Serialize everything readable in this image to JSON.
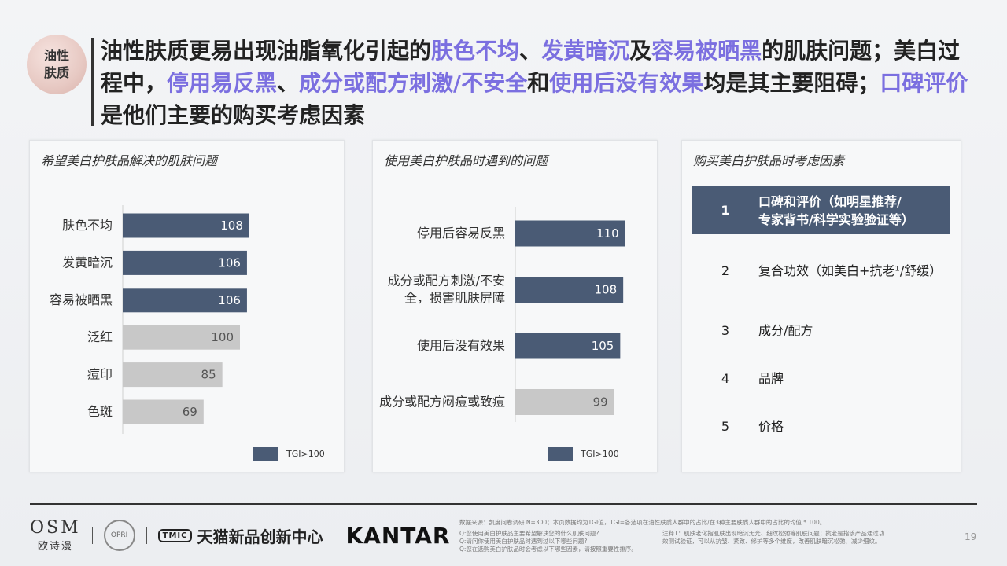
{
  "badge": "油性肤质",
  "title": {
    "segments": [
      {
        "text": "油性肤质更易出现油脂氧化引起的",
        "hl": false
      },
      {
        "text": "肤色不均",
        "hl": true
      },
      {
        "text": "、",
        "hl": false
      },
      {
        "text": "发黄暗沉",
        "hl": true
      },
      {
        "text": "及",
        "hl": false
      },
      {
        "text": "容易被晒黑",
        "hl": true
      },
      {
        "text": "的肌肤问题；美白过程中，",
        "hl": false
      },
      {
        "text": "停用易反黑",
        "hl": true
      },
      {
        "text": "、",
        "hl": false
      },
      {
        "text": "成分或配方刺激/不安全",
        "hl": true
      },
      {
        "text": "和",
        "hl": false
      },
      {
        "text": "使用后没有效果",
        "hl": true
      },
      {
        "text": "均是其主要阻碍；",
        "hl": false
      },
      {
        "text": "口碑评价",
        "hl": true
      },
      {
        "text": "是他们主要的购买考虑因素",
        "hl": false
      }
    ]
  },
  "panels": {
    "p1_title": "希望美白护肤品解决的肌肤问题",
    "p2_title": "使用美白护肤品时遇到的问题",
    "p3_title": "购买美白护肤品时考虑因素",
    "legend": "TGI>100"
  },
  "colors": {
    "above": "#4a5b75",
    "below": "#c8c8c8",
    "highlight": "#7b6fe0"
  },
  "chart_data": [
    {
      "type": "bar",
      "orientation": "horizontal",
      "title": "希望美白护肤品解决的肌肤问题",
      "categories": [
        "肤色不均",
        "发黄暗沉",
        "容易被晒黑",
        "泛红",
        "痘印",
        "色斑"
      ],
      "values": [
        108,
        106,
        106,
        100,
        85,
        69
      ],
      "legend": "TGI>100"
    },
    {
      "type": "bar",
      "orientation": "horizontal",
      "title": "使用美白护肤品时遇到的问题",
      "categories": [
        "停用后容易反黑",
        "成分或配方刺激/不安全，损害肌肤屏障",
        "使用后没有效果",
        "成分或配方闷痘或致痘"
      ],
      "category_lines": [
        [
          "停用后容易反黑"
        ],
        [
          "成分或配方刺激/不安",
          "全，损害肌肤屏障"
        ],
        [
          "使用后没有效果"
        ],
        [
          "成分或配方闷痘或致痘"
        ]
      ],
      "values": [
        110,
        108,
        105,
        99
      ],
      "legend": "TGI>100"
    }
  ],
  "factors": [
    {
      "rank": "1",
      "lines": [
        "口碑和评价（如明星推荐/",
        "专家背书/科学实验验证等）"
      ]
    },
    {
      "rank": "2",
      "lines": [
        "复合功效（如美白+抗老¹/舒缓）"
      ]
    },
    {
      "rank": "3",
      "lines": [
        "成分/配方"
      ]
    },
    {
      "rank": "4",
      "lines": [
        "品牌"
      ]
    },
    {
      "rank": "5",
      "lines": [
        "价格"
      ]
    }
  ],
  "footer": {
    "osm_en": "OSM",
    "osm_cn": "欧诗漫",
    "seal_text": "OPRI",
    "tmall_icon": "TMIC",
    "tmall_text": "天猫新品创新中心",
    "kantar": "KANTAR",
    "source": "数据来源：凯度问卷调研 N=300；本页数据均为TGI值，TGI=各选项在油性肤质人群中的占比/在3种主要肤质人群中的占比的均值 * 100。",
    "q1": "Q:您使用美白护肤品主要希望解决您的什么肌肤问题?",
    "q2": "Q:请问你使用美白护肤品时遇到过以下哪些问题?",
    "q3": "Q:您在选购美白护肤品时会考虑以下哪些因素，请按照重要性排序。",
    "note1": "注释1：肌肤老化指肌肤出现暗沉无光、细纹松弛等肌肤问题；抗老是指该产品通过功",
    "note2": "效测试验证，可以从抗皱、紧致、修护等多个维度，改善肌肤暗沉松弛，减少细纹。",
    "page": "19"
  }
}
